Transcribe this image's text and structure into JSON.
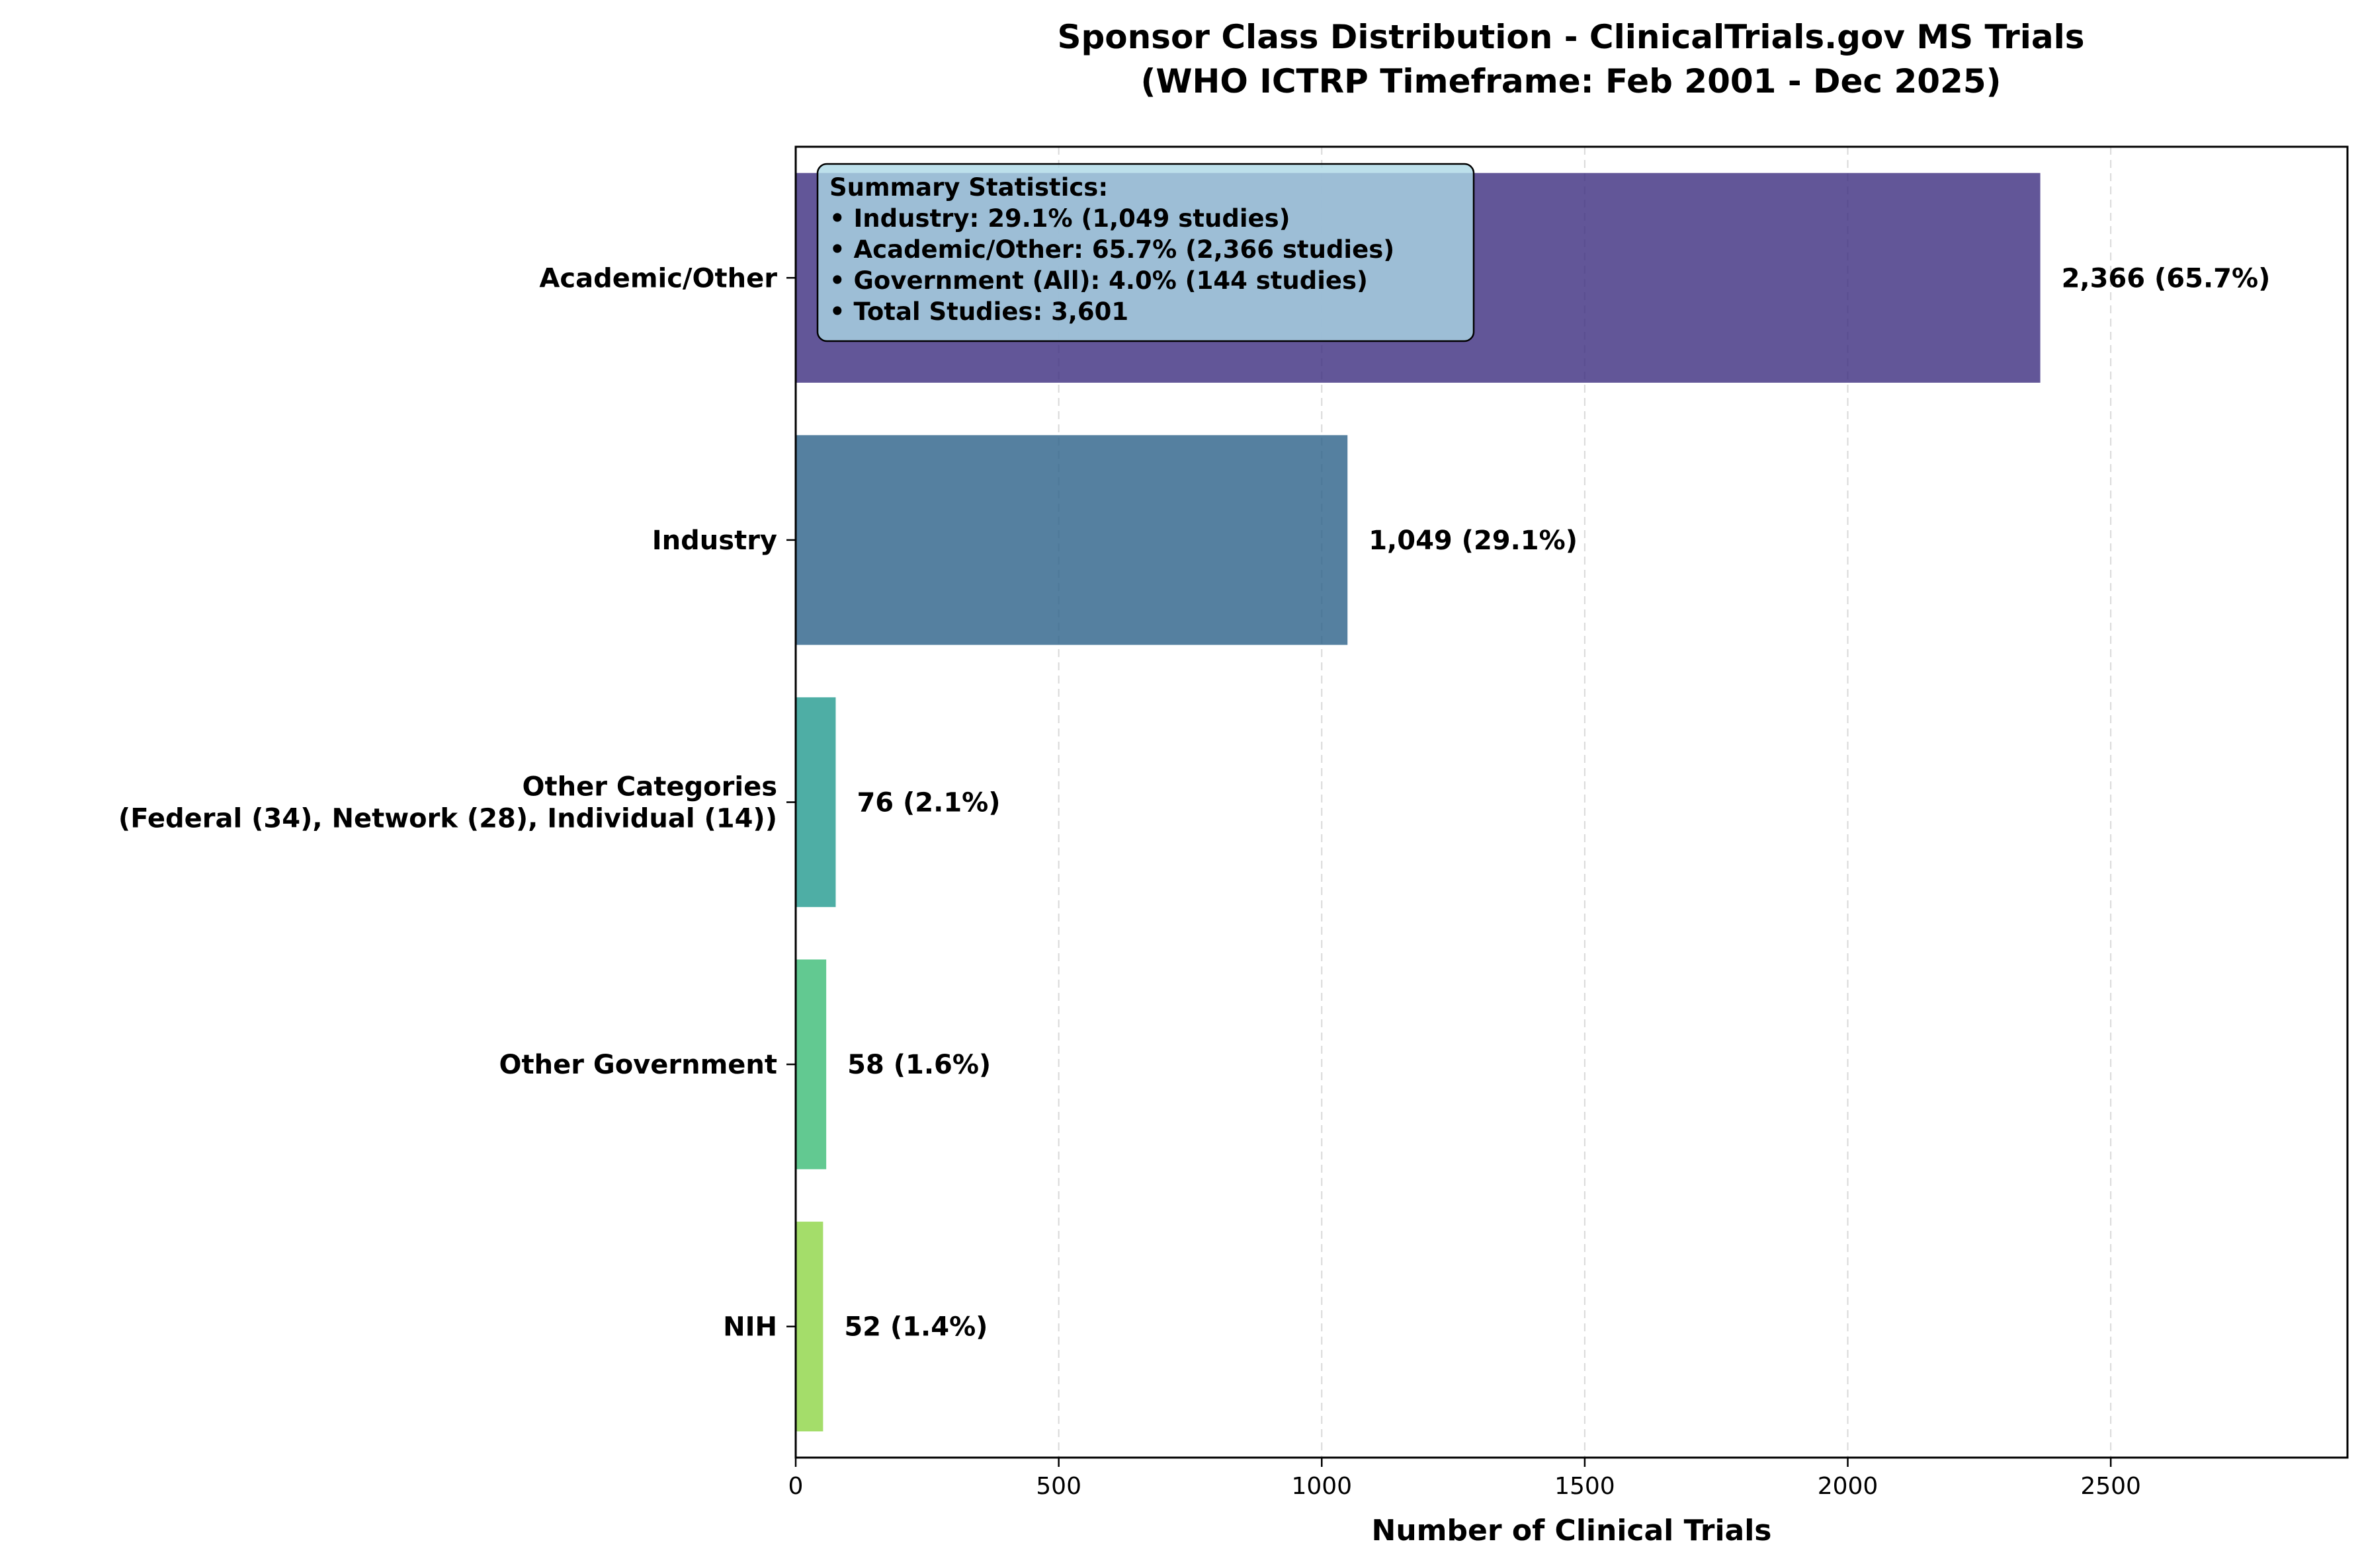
{
  "chart_data": {
    "type": "bar",
    "orientation": "horizontal",
    "title": "Sponsor Class Distribution - ClinicalTrials.gov MS Trials",
    "subtitle": "(WHO ICTRP Timeframe: Feb 2001 - Dec 2025)",
    "xlabel": "Number of Clinical Trials",
    "ylabel": "",
    "xlim": [
      0,
      2950
    ],
    "xticks": [
      0,
      500,
      1000,
      1500,
      2000,
      2500
    ],
    "grid": "vertical dashed",
    "categories": [
      [
        "Academic/Other"
      ],
      [
        "Industry"
      ],
      [
        "Other Categories",
        "(Federal (34), Network (28), Individual (14))"
      ],
      [
        "Other Government"
      ],
      [
        "NIH"
      ]
    ],
    "values": [
      2366,
      1049,
      76,
      58,
      52
    ],
    "labels": [
      "2,366 (65.7%)",
      "1,049 (29.1%)",
      "76 (2.1%)",
      "58 (1.6%)",
      "52 (1.4%)"
    ],
    "colors": [
      "#3b2c7e",
      "#2a6088",
      "#229a8f",
      "#3bbb75",
      "#8dd545"
    ],
    "summary_box": {
      "lines": [
        "Summary Statistics:",
        "• Industry: 29.1% (1,049 studies)",
        "• Academic/Other: 65.7% (2,366 studies)",
        "• Government (All): 4.0% (144 studies)",
        "• Total Studies: 3,601"
      ],
      "background": "#add8e6",
      "placement": "top-left"
    }
  }
}
